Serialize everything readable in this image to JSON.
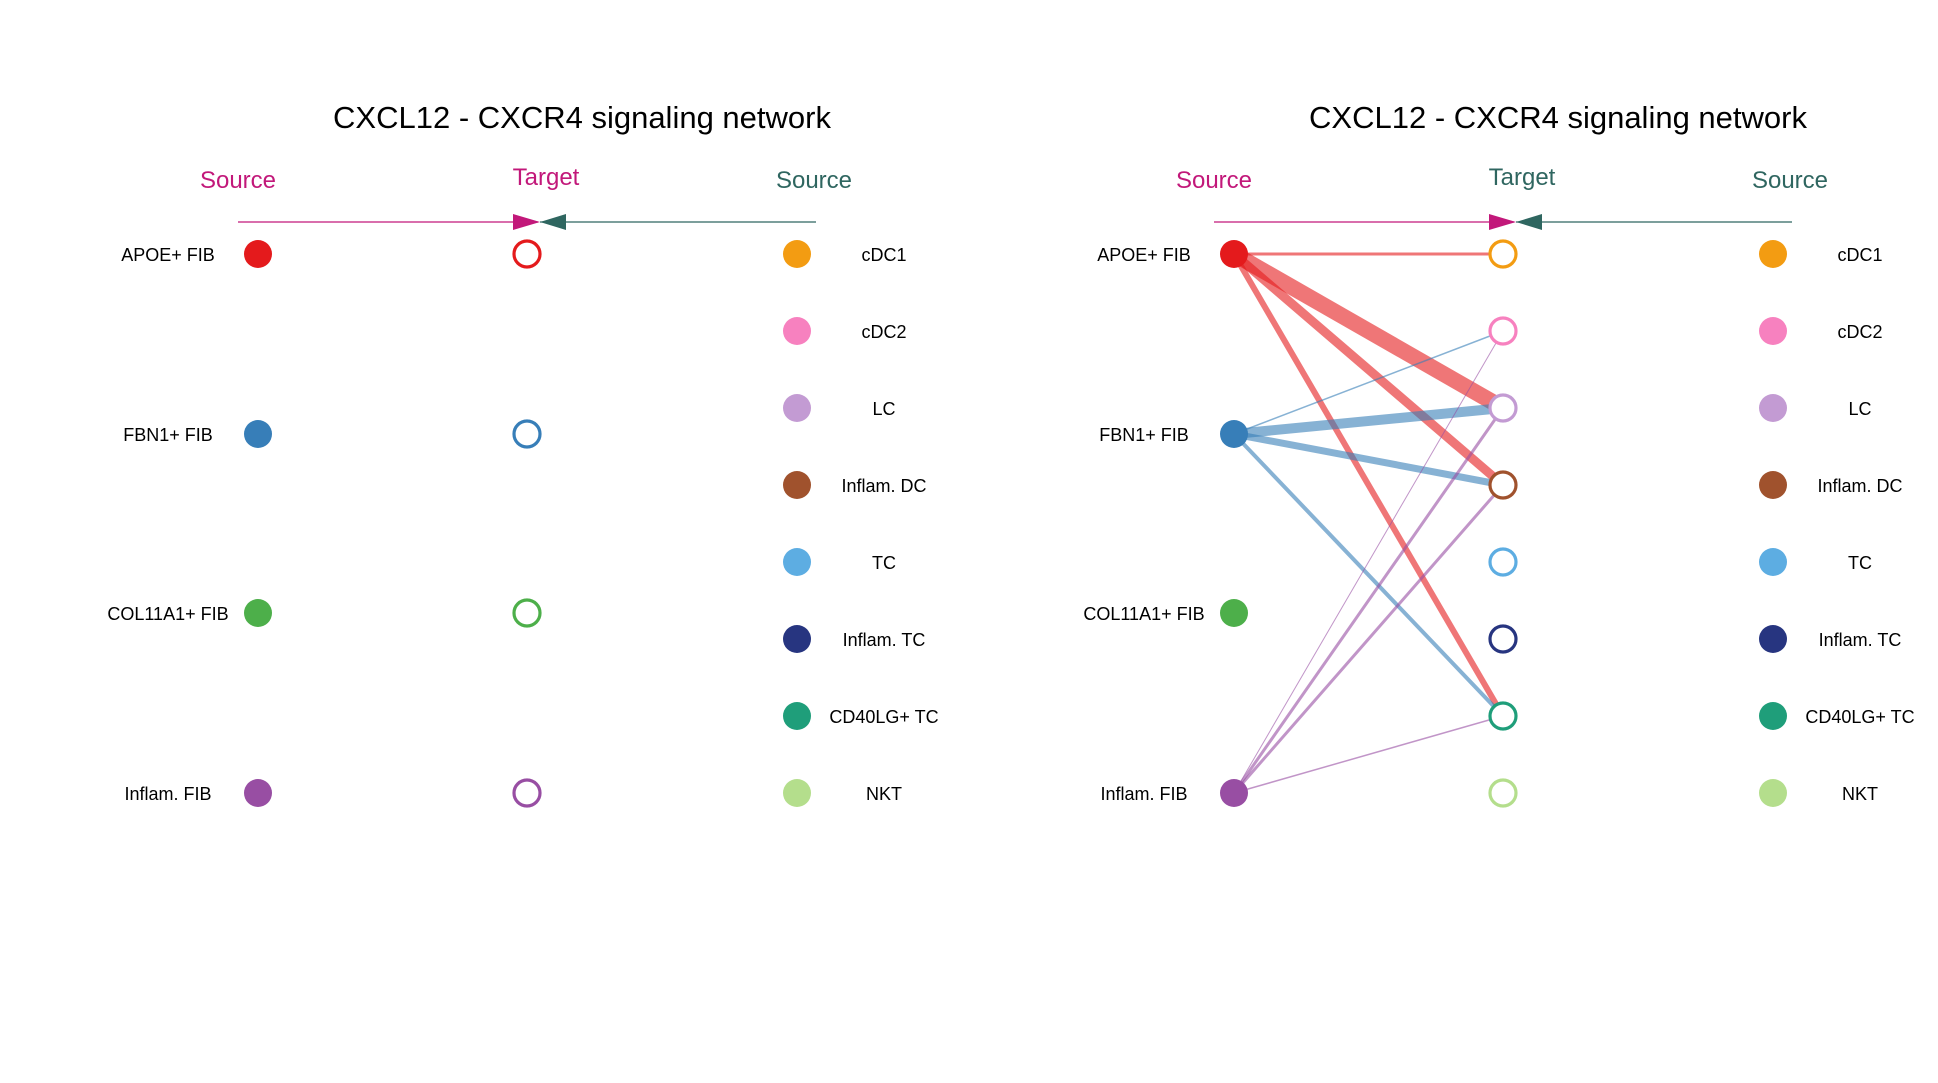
{
  "colors": {
    "source_header": "#c2187a",
    "target_header_left": "#c2187a",
    "target_header_right": "#2f6660",
    "receiver_header": "#2f6660",
    "source_arrow": "#c2187a",
    "receiver_arrow": "#2f6660"
  },
  "sources": [
    {
      "label": "APOE+ FIB",
      "color": "#e41a1c"
    },
    {
      "label": "FBN1+ FIB",
      "color": "#377eb8"
    },
    {
      "label": "COL11A1+ FIB",
      "color": "#4daf4a"
    },
    {
      "label": "Inflam. FIB",
      "color": "#984ea3"
    }
  ],
  "receivers": [
    {
      "label": "cDC1",
      "color": "#f39c12"
    },
    {
      "label": "cDC2",
      "color": "#f781bf"
    },
    {
      "label": "LC",
      "color": "#c39bd3"
    },
    {
      "label": "Inflam. DC",
      "color": "#a0522d"
    },
    {
      "label": "TC",
      "color": "#5dade2"
    },
    {
      "label": "Inflam. TC",
      "color": "#273580"
    },
    {
      "label": "CD40LG+ TC",
      "color": "#1f9e7a"
    },
    {
      "label": "NKT",
      "color": "#b4de8c"
    }
  ],
  "panels": [
    {
      "id": "left",
      "title": "CXCL12 - CXCR4 signaling network",
      "source_header": "Source",
      "target_header": "Target",
      "receiver_header": "Source",
      "target_side": "sources",
      "edges": []
    },
    {
      "id": "right",
      "title": "CXCL12 - CXCR4 signaling network",
      "source_header": "Source",
      "target_header": "Target",
      "receiver_header": "Source",
      "target_side": "receivers",
      "edges": [
        {
          "from": 0,
          "to": 0,
          "weight": 3
        },
        {
          "from": 0,
          "to": 2,
          "weight": 16
        },
        {
          "from": 0,
          "to": 3,
          "weight": 9
        },
        {
          "from": 0,
          "to": 6,
          "weight": 6
        },
        {
          "from": 1,
          "to": 1,
          "weight": 1.5
        },
        {
          "from": 1,
          "to": 2,
          "weight": 10
        },
        {
          "from": 1,
          "to": 3,
          "weight": 7
        },
        {
          "from": 1,
          "to": 6,
          "weight": 4
        },
        {
          "from": 3,
          "to": 1,
          "weight": 1
        },
        {
          "from": 3,
          "to": 2,
          "weight": 3
        },
        {
          "from": 3,
          "to": 3,
          "weight": 3
        },
        {
          "from": 3,
          "to": 6,
          "weight": 1.5
        }
      ]
    }
  ]
}
